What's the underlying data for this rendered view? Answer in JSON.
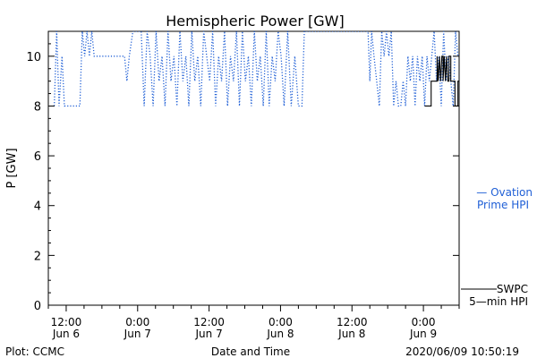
{
  "chart_data": {
    "type": "line",
    "title": "Hemispheric Power [GW]",
    "ylabel": "P [GW]",
    "xlabel": "Date and Time",
    "ylim": [
      0,
      11
    ],
    "xlim_hours": [
      -3,
      66
    ],
    "grid": false,
    "legend_placement": "right",
    "x_ticks": [
      {
        "hour": 0,
        "time": "12:00",
        "date": "Jun 6"
      },
      {
        "hour": 12,
        "time": "0:00",
        "date": "Jun 7"
      },
      {
        "hour": 24,
        "time": "12:00",
        "date": "Jun 7"
      },
      {
        "hour": 36,
        "time": "0:00",
        "date": "Jun 8"
      },
      {
        "hour": 48,
        "time": "12:00",
        "date": "Jun 8"
      },
      {
        "hour": 60,
        "time": "0:00",
        "date": "Jun 9"
      }
    ],
    "y_ticks": [
      0,
      2,
      4,
      6,
      8,
      10
    ],
    "series": [
      {
        "name": "Ovation Prime HPI",
        "legend_lines": [
          "— Ovation",
          "Prime HPI"
        ],
        "color": "#1f5fd6",
        "style": "dotted",
        "points": [
          [
            -2.0,
            8
          ],
          [
            -1.6,
            11
          ],
          [
            -1.2,
            8
          ],
          [
            -0.7,
            10
          ],
          [
            -0.3,
            8
          ],
          [
            2.3,
            8
          ],
          [
            2.7,
            11
          ],
          [
            3.1,
            10
          ],
          [
            3.5,
            11
          ],
          [
            3.9,
            10
          ],
          [
            4.3,
            11
          ],
          [
            4.7,
            10
          ],
          [
            9.8,
            10
          ],
          [
            10.2,
            9
          ],
          [
            10.6,
            10
          ],
          [
            11.2,
            11
          ],
          [
            12.6,
            11
          ],
          [
            13.1,
            8
          ],
          [
            13.6,
            11
          ],
          [
            14.1,
            10
          ],
          [
            14.6,
            8
          ],
          [
            15.1,
            11
          ],
          [
            15.6,
            9
          ],
          [
            16.1,
            10
          ],
          [
            16.6,
            8
          ],
          [
            17.1,
            11
          ],
          [
            17.6,
            9
          ],
          [
            18.1,
            10
          ],
          [
            18.6,
            8
          ],
          [
            19.1,
            11
          ],
          [
            19.6,
            9
          ],
          [
            20.1,
            10
          ],
          [
            20.6,
            8
          ],
          [
            21.1,
            11
          ],
          [
            21.6,
            9
          ],
          [
            22.1,
            10
          ],
          [
            22.6,
            8
          ],
          [
            23.1,
            11
          ],
          [
            23.6,
            10
          ],
          [
            24.1,
            9
          ],
          [
            24.6,
            11
          ],
          [
            25.1,
            8
          ],
          [
            25.6,
            10
          ],
          [
            26.1,
            9
          ],
          [
            26.6,
            11
          ],
          [
            27.1,
            8
          ],
          [
            27.6,
            10
          ],
          [
            28.1,
            9
          ],
          [
            28.6,
            11
          ],
          [
            29.1,
            8
          ],
          [
            29.6,
            11
          ],
          [
            30.1,
            9
          ],
          [
            30.6,
            10
          ],
          [
            31.1,
            8
          ],
          [
            31.6,
            11
          ],
          [
            32.1,
            9
          ],
          [
            32.6,
            10
          ],
          [
            33.1,
            8
          ],
          [
            33.6,
            11
          ],
          [
            34.1,
            8
          ],
          [
            34.6,
            10
          ],
          [
            35.1,
            9
          ],
          [
            35.6,
            11
          ],
          [
            36.1,
            10
          ],
          [
            36.6,
            8
          ],
          [
            37.2,
            11
          ],
          [
            37.8,
            8
          ],
          [
            38.4,
            10
          ],
          [
            39.0,
            8
          ],
          [
            39.6,
            8
          ],
          [
            40.0,
            11
          ],
          [
            50.7,
            11
          ],
          [
            51.0,
            9
          ],
          [
            51.3,
            11
          ],
          [
            51.7,
            10
          ],
          [
            52.6,
            8
          ],
          [
            53.0,
            11
          ],
          [
            53.4,
            10
          ],
          [
            53.8,
            11
          ],
          [
            54.2,
            10
          ],
          [
            54.6,
            11
          ],
          [
            55.0,
            8
          ],
          [
            55.4,
            9
          ],
          [
            55.8,
            8
          ],
          [
            56.2,
            8
          ],
          [
            56.6,
            9
          ],
          [
            57.0,
            8
          ],
          [
            57.4,
            10
          ],
          [
            57.8,
            9
          ],
          [
            58.2,
            10
          ],
          [
            58.6,
            8
          ],
          [
            59.0,
            10
          ],
          [
            59.4,
            9
          ],
          [
            59.8,
            10
          ],
          [
            60.2,
            8
          ],
          [
            60.6,
            10
          ],
          [
            61.0,
            9
          ],
          [
            61.4,
            10
          ],
          [
            61.8,
            11
          ],
          [
            62.2,
            9
          ],
          [
            62.6,
            10
          ],
          [
            63.0,
            8
          ],
          [
            63.4,
            11
          ],
          [
            63.8,
            9
          ],
          [
            64.2,
            10
          ],
          [
            64.6,
            9
          ],
          [
            65.0,
            8
          ],
          [
            65.4,
            11
          ],
          [
            65.8,
            10
          ]
        ]
      },
      {
        "name": "SWPC 5-min HPI",
        "legend_lines": [
          "SWPC",
          "5—min HPI"
        ],
        "color": "#000000",
        "style": "solid",
        "points": [
          [
            60.2,
            8
          ],
          [
            61.3,
            8
          ],
          [
            61.3,
            9
          ],
          [
            62.3,
            9
          ],
          [
            62.3,
            10
          ],
          [
            62.5,
            9
          ],
          [
            62.7,
            10
          ],
          [
            62.9,
            9
          ],
          [
            63.1,
            10
          ],
          [
            63.3,
            10
          ],
          [
            63.3,
            9
          ],
          [
            63.5,
            10
          ],
          [
            63.7,
            9
          ],
          [
            63.9,
            10
          ],
          [
            64.1,
            9
          ],
          [
            64.3,
            9
          ],
          [
            64.3,
            10
          ],
          [
            64.6,
            10
          ],
          [
            64.6,
            9
          ],
          [
            65.3,
            9
          ],
          [
            65.3,
            8
          ],
          [
            65.8,
            8
          ],
          [
            65.8,
            9
          ],
          [
            66.8,
            9
          ]
        ]
      }
    ]
  },
  "footer": {
    "left": "Plot: CCMC",
    "center": "Date and Time",
    "right": "2020/06/09 10:50:19"
  }
}
